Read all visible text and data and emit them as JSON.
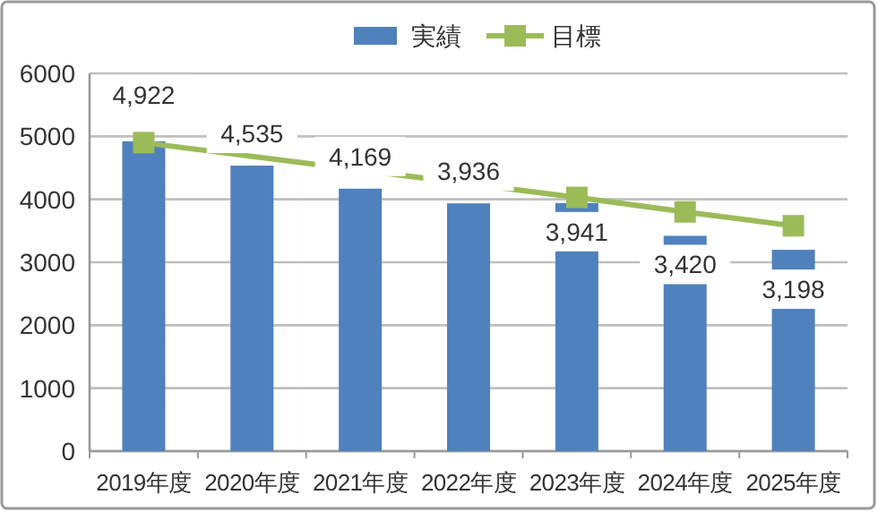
{
  "chart_data": {
    "type": "bar",
    "categories": [
      "2019年度",
      "2020年度",
      "2021年度",
      "2022年度",
      "2023年度",
      "2024年度",
      "2025年度"
    ],
    "series": [
      {
        "name": "実績",
        "color": "#4f81bd",
        "values": [
          4922,
          4535,
          4169,
          3936,
          3941,
          3420,
          3198
        ],
        "value_labels": [
          "4,922",
          "4,535",
          "4,169",
          "3,936",
          "3,941",
          "3,420",
          "3,198"
        ]
      },
      {
        "name": "目標",
        "type": "line",
        "color": "#9bbb59",
        "marker": "square",
        "values": [
          4900,
          null,
          null,
          null,
          4030,
          3800,
          3580
        ]
      }
    ],
    "ylim": [
      0,
      6000
    ],
    "yticks": [
      0,
      1000,
      2000,
      3000,
      4000,
      5000,
      6000
    ],
    "grid": "y",
    "legend": "top"
  }
}
